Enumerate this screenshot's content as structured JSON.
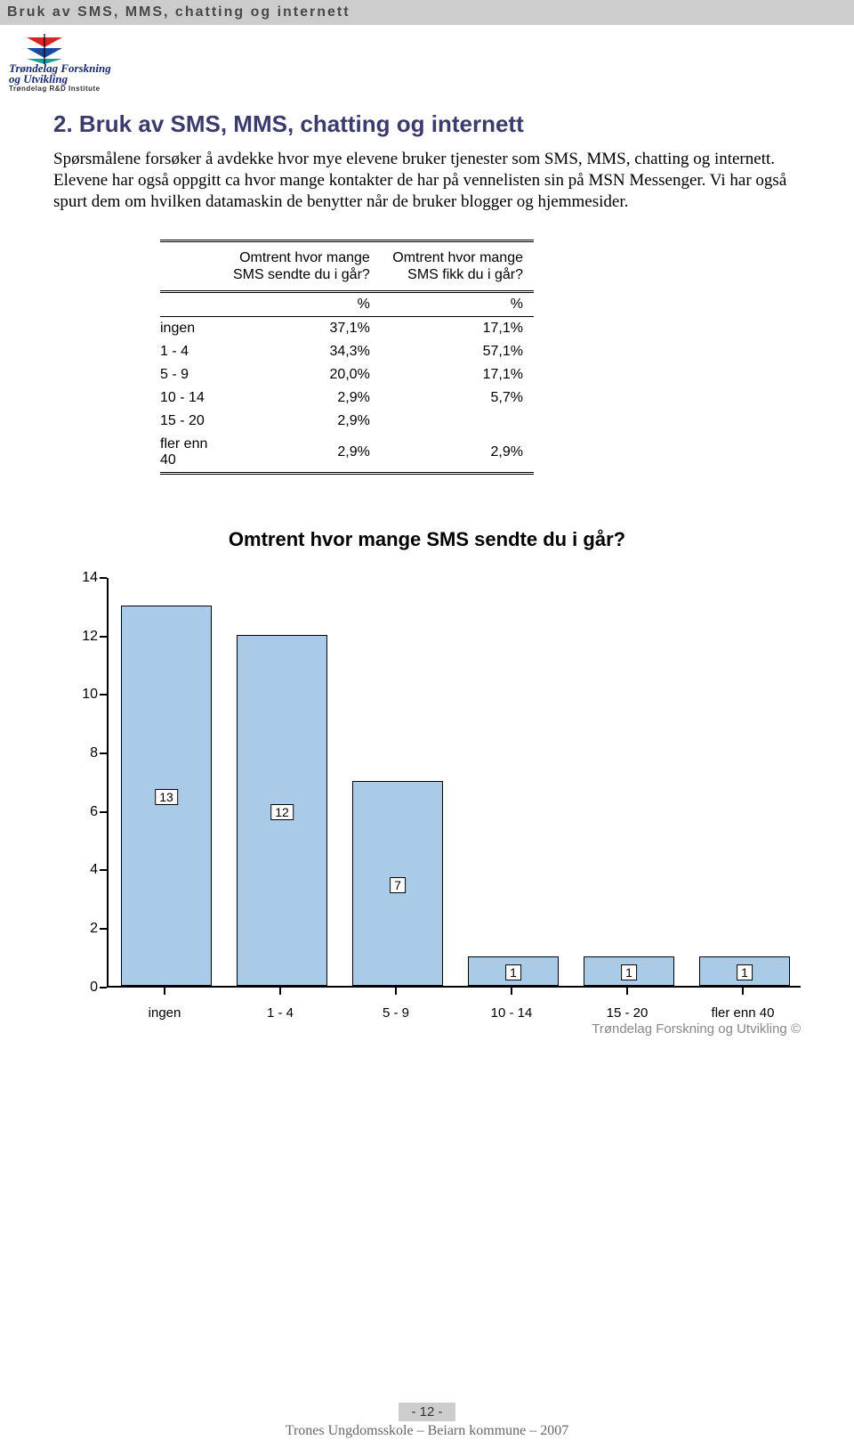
{
  "header": {
    "title": "Bruk av SMS, MMS, chatting og internett"
  },
  "logo": {
    "line1": "Trøndelag Forskning",
    "line2": "og Utvikling",
    "sub": "Trøndelag R&D Institute",
    "colors": {
      "red": "#d9232a",
      "blue": "#1a4b9b",
      "teal": "#1a9ba0"
    }
  },
  "section": {
    "heading": "2. Bruk av SMS, MMS, chatting og internett",
    "body": "Spørsmålene forsøker å avdekke hvor mye elevene bruker tjenester som SMS, MMS, chatting og internett. Elevene har også oppgitt ca hvor mange kontakter de har på vennelisten sin på MSN Messenger. Vi har også spurt dem om hvilken datamaskin de benytter når de bruker blogger og hjemmesider."
  },
  "table": {
    "col1_header": "Omtrent hvor mange SMS sendte du i går?",
    "col2_header": "Omtrent hvor mange SMS fikk du i går?",
    "pct_label": "%",
    "rows": [
      {
        "label": "ingen",
        "c1": "37,1%",
        "c2": "17,1%"
      },
      {
        "label": "1 - 4",
        "c1": "34,3%",
        "c2": "57,1%"
      },
      {
        "label": "5 - 9",
        "c1": "20,0%",
        "c2": "17,1%"
      },
      {
        "label": "10 - 14",
        "c1": "2,9%",
        "c2": "5,7%"
      },
      {
        "label": "15 - 20",
        "c1": "2,9%",
        "c2": ""
      },
      {
        "label": "fler enn 40",
        "c1": "2,9%",
        "c2": "2,9%"
      }
    ]
  },
  "chart": {
    "title": "Omtrent hvor mange SMS sendte du i går?",
    "type": "bar",
    "y": {
      "min": 0,
      "max": 14,
      "step": 2
    },
    "bar_color": "#a9cbe8",
    "bar_border": "#000000",
    "categories": [
      "ingen",
      "1 - 4",
      "5 - 9",
      "10 - 14",
      "15 - 20",
      "fler enn 40"
    ],
    "values": [
      13,
      12,
      7,
      1,
      1,
      1
    ],
    "copyright": "Trøndelag Forskning og Utvikling ©"
  },
  "footer": {
    "page": "- 12 -",
    "line": "Trones Ungdomsskole – Beiarn kommune – 2007"
  }
}
